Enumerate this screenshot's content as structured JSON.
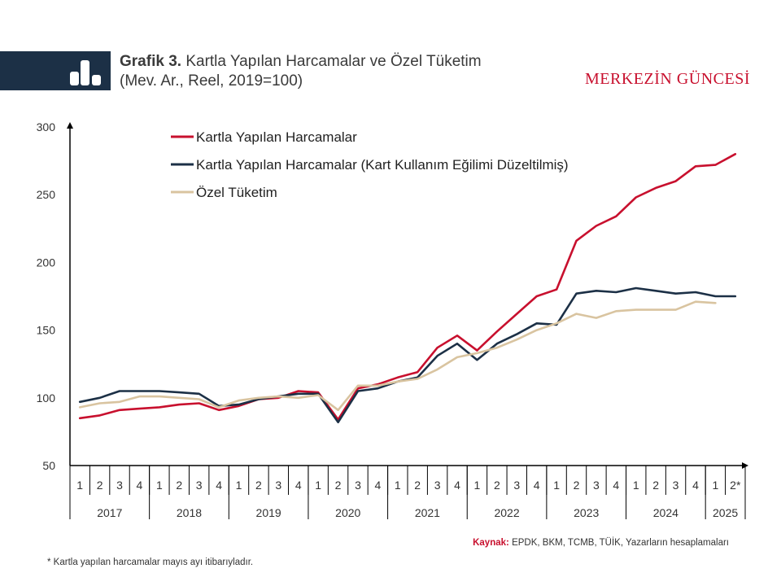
{
  "header": {
    "title_bold": "Grafik 3.",
    "title_rest": "Kartla Yapılan Harcamalar ve Özel Tüketim",
    "subtitle": "(Mev. Ar., Reel, 2019=100)",
    "brand": "MERKEZİN GÜNCESİ",
    "icon": "bar-chart-icon"
  },
  "footer": {
    "source_label": "Kaynak:",
    "source_text": "EPDK, BKM, TCMB, TÜİK, Yazarların hesaplamaları",
    "footnote": "* Kartla yapılan harcamalar mayıs ayı itibarıyladır."
  },
  "colors": {
    "red": "#c8102e",
    "navy": "#1c3046",
    "beige": "#d9c4a0",
    "header_bg": "#1c3046"
  },
  "chart_data": {
    "type": "line",
    "ylim": [
      50,
      300
    ],
    "y_ticks": [
      "50",
      "100",
      "150",
      "200",
      "250",
      "300"
    ],
    "quarter_labels": [
      "1",
      "2",
      "3",
      "4",
      "1",
      "2",
      "3",
      "4",
      "1",
      "2",
      "3",
      "4",
      "1",
      "2",
      "3",
      "4",
      "1",
      "2",
      "3",
      "4",
      "1",
      "2",
      "3",
      "4",
      "1",
      "2",
      "3",
      "4",
      "1",
      "2",
      "3",
      "4",
      "1",
      "2*"
    ],
    "years": [
      "2017",
      "2018",
      "2019",
      "2020",
      "2021",
      "2022",
      "2023",
      "2024",
      "2025"
    ],
    "series": [
      {
        "name": "Kartla Yapılan Harcamalar",
        "color": "#c8102e",
        "values": [
          85,
          87,
          91,
          92,
          93,
          95,
          96,
          91,
          94,
          99,
          100,
          105,
          104,
          84,
          107,
          110,
          115,
          119,
          137,
          146,
          135,
          149,
          162,
          175,
          180,
          216,
          227,
          234,
          248,
          255,
          260,
          271,
          272,
          280
        ]
      },
      {
        "name": "Kartla Yapılan Harcamalar (Kart Kullanım Eğilimi Düzeltilmiş)",
        "color": "#1c3046",
        "values": [
          97,
          100,
          105,
          105,
          105,
          104,
          103,
          94,
          95,
          99,
          101,
          103,
          103,
          82,
          105,
          107,
          112,
          115,
          131,
          140,
          128,
          140,
          147,
          155,
          154,
          177,
          179,
          178,
          181,
          179,
          177,
          178,
          175,
          175
        ]
      },
      {
        "name": "Özel Tüketim",
        "color": "#d9c4a0",
        "values": [
          93,
          96,
          97,
          101,
          101,
          100,
          99,
          93,
          98,
          100,
          101,
          100,
          102,
          91,
          109,
          109,
          112,
          114,
          121,
          130,
          133,
          137,
          143,
          150,
          155,
          162,
          159,
          164,
          165,
          165,
          165,
          171,
          170,
          null
        ]
      }
    ]
  }
}
